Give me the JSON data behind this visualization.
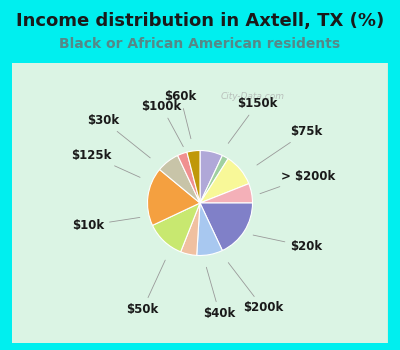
{
  "title": "Income distribution in Axtell, TX (%)",
  "subtitle": "Black or African American residents",
  "outer_bg_color": "#00efef",
  "chart_bg_top": "#f0faf8",
  "chart_bg_bottom": "#c8edd8",
  "labels": [
    "$100k",
    "$150k",
    "$75k",
    "> $200k",
    "$20k",
    "$200k",
    "$40k",
    "$50k",
    "$10k",
    "$125k",
    "$30k",
    "$60k"
  ],
  "sizes": [
    7,
    2,
    10,
    6,
    18,
    8,
    5,
    12,
    18,
    7,
    3,
    4
  ],
  "colors": [
    "#b0a8d8",
    "#a0d0a0",
    "#f8f898",
    "#f4b0b8",
    "#8080c8",
    "#a8c8f0",
    "#f0c0a0",
    "#c8e870",
    "#f4a040",
    "#c8c4a8",
    "#f09090",
    "#c0980a"
  ],
  "title_fontsize": 13,
  "subtitle_fontsize": 10,
  "label_fontsize": 8.5,
  "watermark": "City-Data.com",
  "wedge_linewidth": 0.8,
  "wedge_edgecolor": "white",
  "label_color": "#1a1a1a",
  "line_color": "#999999"
}
